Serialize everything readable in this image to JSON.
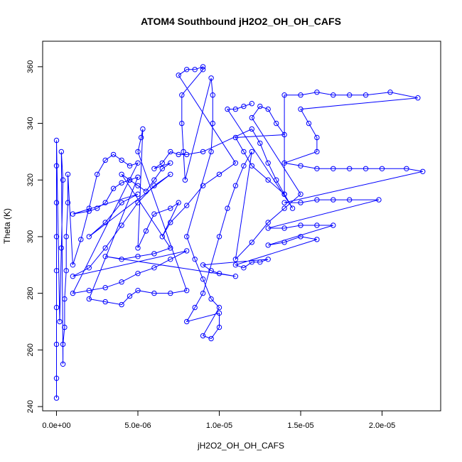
{
  "chart_data": {
    "type": "scatter",
    "title": "ATOM4 Southbound jH2O2_OH_OH_CAFS",
    "xlabel": "jH2O2_OH_OH_CAFS",
    "ylabel": "Theta (K)",
    "xlim": [
      -8.5e-07,
      2.36e-05
    ],
    "ylim": [
      238.5,
      369
    ],
    "x_ticks": [
      0,
      5e-06,
      1e-05,
      1.5e-05,
      2e-05
    ],
    "x_tick_labels": [
      "0.0e+00",
      "5.0e-06",
      "1.0e-05",
      "1.5e-05",
      "2.0e-05"
    ],
    "y_ticks": [
      240,
      260,
      280,
      300,
      320,
      340,
      360
    ],
    "y_tick_labels": [
      "240",
      "260",
      "280",
      "300",
      "320",
      "340",
      "360"
    ],
    "grid": false,
    "marker": "open-circle",
    "connected": true,
    "series": [
      {
        "color": "#0000ff",
        "points": [
          [
            0.0,
            243
          ],
          [
            0.0,
            250
          ],
          [
            0.0,
            262
          ],
          [
            0.0,
            275
          ],
          [
            0.0,
            288
          ],
          [
            0.0,
            300
          ],
          [
            0.0,
            312
          ],
          [
            0.0,
            325
          ],
          [
            0.0,
            334
          ],
          [
            2e-07,
            270
          ],
          [
            3e-07,
            296
          ],
          [
            4e-07,
            320
          ],
          [
            3e-07,
            330
          ],
          [
            4e-07,
            255
          ],
          [
            4e-07,
            262
          ],
          [
            5e-07,
            268
          ],
          [
            5e-07,
            278
          ],
          [
            6e-07,
            288
          ],
          [
            6e-07,
            300
          ],
          [
            7e-07,
            312
          ],
          [
            7e-07,
            322
          ],
          [
            1e-06,
            290
          ],
          [
            1.5e-06,
            299
          ],
          [
            2e-06,
            310
          ],
          [
            2.5e-06,
            322
          ],
          [
            3e-06,
            327
          ],
          [
            3.5e-06,
            329
          ],
          [
            4e-06,
            327
          ],
          [
            4.5e-06,
            325
          ],
          [
            5e-06,
            326
          ],
          [
            1e-06,
            280
          ],
          [
            2e-06,
            281
          ],
          [
            3e-06,
            282
          ],
          [
            4e-06,
            284
          ],
          [
            5e-06,
            287
          ],
          [
            6e-06,
            289
          ],
          [
            7e-06,
            292
          ],
          [
            8e-06,
            295
          ],
          [
            1e-06,
            286
          ],
          [
            2e-06,
            289
          ],
          [
            3e-06,
            296
          ],
          [
            4e-06,
            304
          ],
          [
            5e-06,
            312
          ],
          [
            6e-06,
            318
          ],
          [
            7e-06,
            322
          ],
          [
            2e-06,
            300
          ],
          [
            3e-06,
            305
          ],
          [
            4e-06,
            312
          ],
          [
            5e-06,
            315
          ],
          [
            1e-06,
            308
          ],
          [
            2e-06,
            309
          ],
          [
            2.5e-06,
            310
          ],
          [
            3e-06,
            312
          ],
          [
            3.5e-06,
            317
          ],
          [
            4e-06,
            319
          ],
          [
            4.5e-06,
            320
          ],
          [
            5e-06,
            321
          ],
          [
            2e-06,
            278
          ],
          [
            3e-06,
            277
          ],
          [
            4e-06,
            276
          ],
          [
            4.5e-06,
            279
          ],
          [
            5e-06,
            281
          ],
          [
            6e-06,
            280
          ],
          [
            7e-06,
            280
          ],
          [
            8e-06,
            281
          ],
          [
            5e-06,
            330
          ],
          [
            5.2e-06,
            335
          ],
          [
            5.3e-06,
            338
          ],
          [
            5e-06,
            296
          ],
          [
            5.5e-06,
            302
          ],
          [
            6e-06,
            308
          ],
          [
            7e-06,
            310
          ],
          [
            7.5e-06,
            312
          ],
          [
            6.5e-06,
            300
          ],
          [
            7e-06,
            305
          ],
          [
            8e-06,
            311
          ],
          [
            9e-06,
            318
          ],
          [
            1e-05,
            322
          ],
          [
            1.1e-05,
            326
          ],
          [
            7.5e-06,
            357
          ],
          [
            8e-06,
            359
          ],
          [
            8.5e-06,
            359
          ],
          [
            9e-06,
            360
          ],
          [
            9e-06,
            359
          ],
          [
            7.7e-06,
            350
          ],
          [
            7.7e-06,
            340
          ],
          [
            7.8e-06,
            330
          ],
          [
            7.9e-06,
            320
          ],
          [
            9.5e-06,
            356
          ],
          [
            9.6e-06,
            350
          ],
          [
            9.6e-06,
            340
          ],
          [
            9.5e-06,
            330
          ],
          [
            8e-06,
            300
          ],
          [
            8.5e-06,
            292
          ],
          [
            9e-06,
            285
          ],
          [
            9.5e-06,
            278
          ],
          [
            1e-05,
            275
          ],
          [
            9e-06,
            265
          ],
          [
            9.5e-06,
            264
          ],
          [
            1e-05,
            268
          ],
          [
            1e-05,
            273
          ],
          [
            8e-06,
            270
          ],
          [
            8.5e-06,
            275
          ],
          [
            9e-06,
            280
          ],
          [
            1e-05,
            300
          ],
          [
            1.05e-05,
            310
          ],
          [
            1.1e-05,
            318
          ],
          [
            1.15e-05,
            325
          ],
          [
            1.2e-05,
            330
          ],
          [
            1.1e-05,
            292
          ],
          [
            1.2e-05,
            298
          ],
          [
            1.3e-05,
            305
          ],
          [
            1.4e-05,
            310
          ],
          [
            1.5e-05,
            315
          ],
          [
            1.2e-05,
            342
          ],
          [
            1.25e-05,
            346
          ],
          [
            1.3e-05,
            345
          ],
          [
            1.35e-05,
            340
          ],
          [
            1.4e-05,
            336
          ],
          [
            1.1e-05,
            335
          ],
          [
            1.15e-05,
            330
          ],
          [
            1.2e-05,
            325
          ],
          [
            1.3e-05,
            320
          ],
          [
            1.4e-05,
            315
          ],
          [
            1.4e-05,
            350
          ],
          [
            1.5e-05,
            350
          ],
          [
            1.6e-05,
            351
          ],
          [
            1.7e-05,
            350
          ],
          [
            1.8e-05,
            350
          ],
          [
            1.9e-05,
            350
          ],
          [
            2.05e-05,
            351
          ],
          [
            2.22e-05,
            349
          ],
          [
            1.5e-05,
            345
          ],
          [
            1.55e-05,
            340
          ],
          [
            1.6e-05,
            335
          ],
          [
            1.6e-05,
            330
          ],
          [
            1.4e-05,
            326
          ],
          [
            1.5e-05,
            325
          ],
          [
            1.6e-05,
            324
          ],
          [
            1.7e-05,
            324
          ],
          [
            1.8e-05,
            324
          ],
          [
            1.9e-05,
            324
          ],
          [
            2e-05,
            324
          ],
          [
            2.15e-05,
            324
          ],
          [
            2.25e-05,
            323
          ],
          [
            1.4e-05,
            312
          ],
          [
            1.5e-05,
            312
          ],
          [
            1.6e-05,
            313
          ],
          [
            1.7e-05,
            313
          ],
          [
            1.8e-05,
            313
          ],
          [
            1.98e-05,
            313
          ],
          [
            1.3e-05,
            303
          ],
          [
            1.4e-05,
            303
          ],
          [
            1.5e-05,
            304
          ],
          [
            1.6e-05,
            304
          ],
          [
            1.7e-05,
            304
          ],
          [
            1.3e-05,
            297
          ],
          [
            1.4e-05,
            298
          ],
          [
            1.5e-05,
            300
          ],
          [
            1.6e-05,
            299
          ],
          [
            1.1e-05,
            290
          ],
          [
            1.15e-05,
            289
          ],
          [
            1.2e-05,
            291
          ],
          [
            1.25e-05,
            291
          ],
          [
            1.3e-05,
            292
          ],
          [
            9e-06,
            290
          ],
          [
            9.5e-06,
            288
          ],
          [
            1e-05,
            287
          ],
          [
            1.1e-05,
            286
          ],
          [
            3e-06,
            293
          ],
          [
            4e-06,
            292
          ],
          [
            5e-06,
            293
          ],
          [
            6e-06,
            294
          ],
          [
            7e-06,
            296
          ],
          [
            4e-06,
            322
          ],
          [
            4.5e-06,
            320
          ],
          [
            5e-06,
            318
          ],
          [
            5.5e-06,
            316
          ],
          [
            6e-06,
            320
          ],
          [
            6.5e-06,
            324
          ],
          [
            7e-06,
            326
          ],
          [
            6e-06,
            324
          ],
          [
            6.5e-06,
            326
          ],
          [
            7e-06,
            330
          ],
          [
            7.5e-06,
            329
          ],
          [
            8e-06,
            329
          ],
          [
            9e-06,
            330
          ],
          [
            1.2e-05,
            338
          ],
          [
            1.25e-05,
            333
          ],
          [
            1.3e-05,
            326
          ],
          [
            1.35e-05,
            320
          ],
          [
            1.4e-05,
            315
          ],
          [
            1.45e-05,
            310
          ],
          [
            1.05e-05,
            345
          ],
          [
            1.1e-05,
            345
          ],
          [
            1.15e-05,
            346
          ],
          [
            1.2e-05,
            347
          ]
        ]
      }
    ]
  }
}
